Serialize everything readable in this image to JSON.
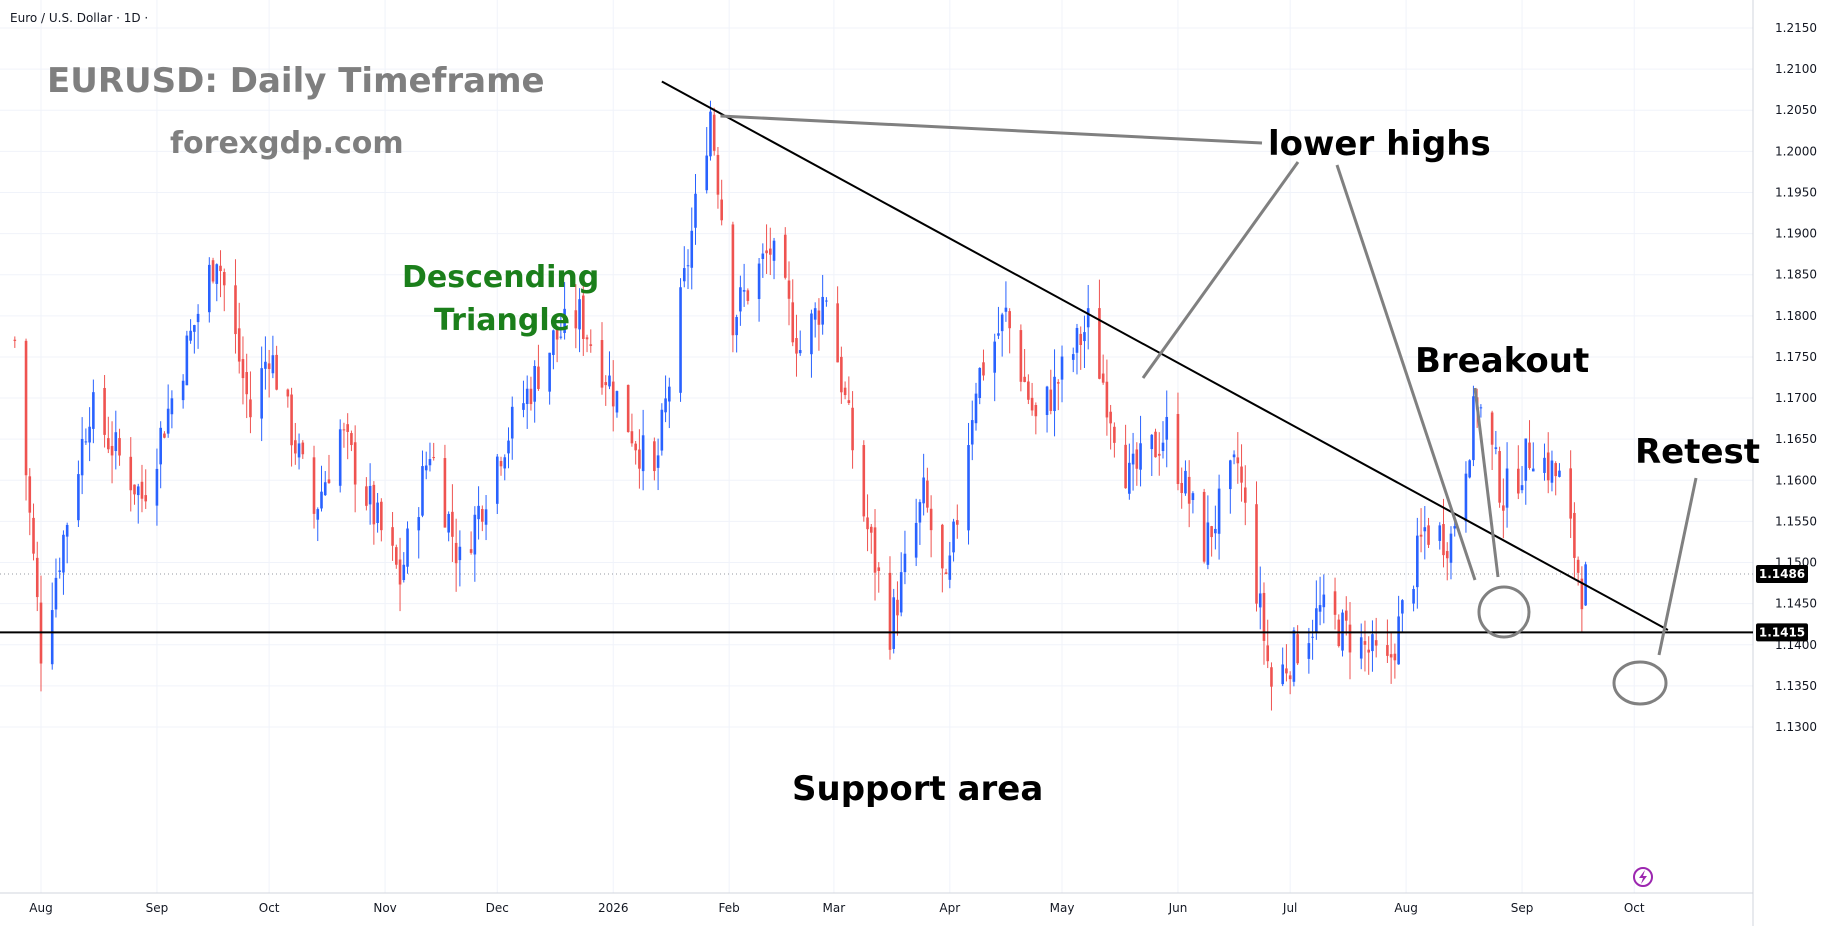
{
  "symbol_header": "Euro / U.S. Dollar · 1D ·",
  "annotations": {
    "title": "EURUSD: Daily Timeframe",
    "site": "forexgdp.com",
    "pattern_line1": "Descending",
    "pattern_line2": "Triangle",
    "lower_highs": "lower highs",
    "breakout": "Breakout",
    "retest": "Retest",
    "support": "Support area"
  },
  "colors": {
    "up": "#2962ff",
    "down": "#ef5350",
    "trendline": "#000000",
    "pointer": "#808080",
    "grid": "#f0f3fa",
    "support": "#000000",
    "tag_bg": "#000000",
    "pattern_text": "#1b7f1b",
    "title_text": "#7f7f7f"
  },
  "chart_data": {
    "type": "candlestick",
    "timeframe": "1D",
    "y_axis": {
      "ticks": [
        "1.1300",
        "1.1350",
        "1.1400",
        "1.1450",
        "1.1500",
        "1.1550",
        "1.1600",
        "1.1650",
        "1.1700",
        "1.1750",
        "1.1800",
        "1.1850",
        "1.1900",
        "1.1950",
        "1.2000",
        "1.2050",
        "1.2100",
        "1.2150"
      ],
      "range": [
        1.1275,
        1.2165
      ]
    },
    "x_axis": {
      "ticks": [
        "Aug",
        "Sep",
        "Oct",
        "Nov",
        "Dec",
        "2026",
        "Feb",
        "Mar",
        "Apr",
        "May",
        "Jun",
        "Jul",
        "Aug",
        "Sep",
        "Oct"
      ]
    },
    "price_tags": [
      {
        "label": "1.1486",
        "value": 1.1486
      },
      {
        "label": "1.1415",
        "value": 1.1415
      }
    ],
    "support_level": 1.1415,
    "last_price": 1.1486,
    "pivots": [
      {
        "date": "2025-07-25",
        "price": 1.177
      },
      {
        "date": "2025-08-01",
        "price": 1.1395
      },
      {
        "date": "2025-08-14",
        "price": 1.169
      },
      {
        "date": "2025-08-28",
        "price": 1.158
      },
      {
        "date": "2025-09-17",
        "price": 1.188
      },
      {
        "date": "2025-09-26",
        "price": 1.168
      },
      {
        "date": "2025-10-01",
        "price": 1.176
      },
      {
        "date": "2025-10-13",
        "price": 1.156
      },
      {
        "date": "2025-10-20",
        "price": 1.166
      },
      {
        "date": "2025-11-05",
        "price": 1.148
      },
      {
        "date": "2025-11-13",
        "price": 1.164
      },
      {
        "date": "2025-11-21",
        "price": 1.15
      },
      {
        "date": "2025-12-02",
        "price": 1.164
      },
      {
        "date": "2025-12-16",
        "price": 1.177
      },
      {
        "date": "2025-12-23",
        "price": 1.18
      },
      {
        "date": "2026-01-12",
        "price": 1.16
      },
      {
        "date": "2026-01-27",
        "price": 1.205
      },
      {
        "date": "2026-02-02",
        "price": 1.18
      },
      {
        "date": "2026-02-12",
        "price": 1.188
      },
      {
        "date": "2026-02-20",
        "price": 1.176
      },
      {
        "date": "2026-02-27",
        "price": 1.183
      },
      {
        "date": "2026-03-09",
        "price": 1.156
      },
      {
        "date": "2026-03-16",
        "price": 1.142
      },
      {
        "date": "2026-03-25",
        "price": 1.158
      },
      {
        "date": "2026-03-31",
        "price": 1.146
      },
      {
        "date": "2026-04-08",
        "price": 1.172
      },
      {
        "date": "2026-04-16",
        "price": 1.18
      },
      {
        "date": "2026-04-24",
        "price": 1.167
      },
      {
        "date": "2026-05-08",
        "price": 1.179
      },
      {
        "date": "2026-05-19",
        "price": 1.16
      },
      {
        "date": "2026-05-29",
        "price": 1.166
      },
      {
        "date": "2026-06-08",
        "price": 1.152
      },
      {
        "date": "2026-06-17",
        "price": 1.162
      },
      {
        "date": "2026-06-26",
        "price": 1.135
      },
      {
        "date": "2026-07-09",
        "price": 1.144
      },
      {
        "date": "2026-07-20",
        "price": 1.14
      },
      {
        "date": "2026-07-27",
        "price": 1.137
      },
      {
        "date": "2026-08-06",
        "price": 1.154
      },
      {
        "date": "2026-08-13",
        "price": 1.153
      },
      {
        "date": "2026-08-20",
        "price": 1.17
      },
      {
        "date": "2026-08-27",
        "price": 1.158
      },
      {
        "date": "2026-09-04",
        "price": 1.164
      },
      {
        "date": "2026-09-11",
        "price": 1.16
      },
      {
        "date": "2026-09-17",
        "price": 1.147
      },
      {
        "date": "2026-09-19",
        "price": 1.1486
      }
    ],
    "trendline": {
      "from": {
        "date": "2026-01-14",
        "price": 1.2085
      },
      "to": {
        "date": "2026-10-10",
        "price": 1.1418
      }
    },
    "lower_highs_marker": {
      "date": "2026-01-27",
      "price": 1.2043
    }
  }
}
